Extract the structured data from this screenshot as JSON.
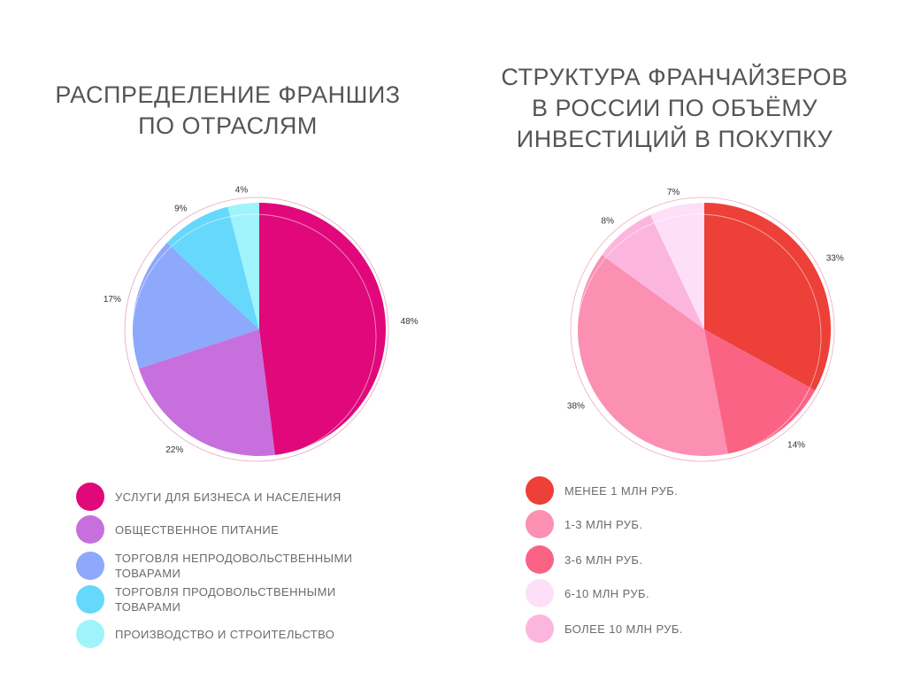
{
  "titles": {
    "left": "РАСПРЕДЕЛЕНИЕ ФРАНШИЗ\nПО ОТРАСЛЯМ",
    "right": "СТРУКТУРА ФРАНЧАЙЗЕРОВ\nВ РОССИИ ПО ОБЪЁМУ\nИНВЕСТИЦИЙ  В ПОКУПКУ"
  },
  "chart_data": [
    {
      "type": "pie",
      "title": "РАСПРЕДЕЛЕНИЕ ФРАНШИЗ ПО ОТРАСЛЯМ",
      "legend_position": "bottom",
      "slices": [
        {
          "label": "УСЛУГИ ДЛЯ БИЗНЕСА И НАСЕЛЕНИЯ",
          "value": 48,
          "value_label": "48%",
          "color": "#e0087a"
        },
        {
          "label": "ОБЩЕСТВЕННОЕ ПИТАНИЕ",
          "value": 22,
          "value_label": "22%",
          "color": "#c66fdd"
        },
        {
          "label": "ТОРГОВЛЯ НЕПРОДОВОЛЬСТВЕННЫМИ ТОВАРАМИ",
          "value": 17,
          "value_label": "17%",
          "color": "#8ea8fb"
        },
        {
          "label": "ТОРГОВЛЯ ПРОДОВОЛЬСТВЕННЫМИ ТОВАРАМИ",
          "value": 9,
          "value_label": "9%",
          "color": "#66d8fb"
        },
        {
          "label": "ПРОИЗВОДСТВО И СТРОИТЕЛЬСТВО",
          "value": 4,
          "value_label": "4%",
          "color": "#9ff4fb"
        }
      ]
    },
    {
      "type": "pie",
      "title": "СТРУКТУРА ФРАНЧАЙЗЕРОВ В РОССИИ ПО ОБЪЁМУ ИНВЕСТИЦИЙ  В ПОКУПКУ",
      "legend_position": "bottom",
      "slices": [
        {
          "label": "МЕНЕЕ 1 МЛН РУБ.",
          "value": 33,
          "value_label": "33%",
          "color": "#ec4038"
        },
        {
          "label": "3-6 МЛН РУБ.",
          "value": 14,
          "value_label": "14%",
          "color": "#fb6384"
        },
        {
          "label": "1-3 МЛН РУБ.",
          "value": 38,
          "value_label": "38%",
          "color": "#fb90b2"
        },
        {
          "label": "БОЛЕЕ 10 МЛН РУБ.",
          "value": 8,
          "value_label": "8%",
          "color": "#fcb6de"
        },
        {
          "label": "6-10 МЛН РУБ.",
          "value": 7,
          "value_label": "7%",
          "color": "#fde0f8"
        }
      ],
      "legend_order": [
        {
          "label": "МЕНЕЕ 1 МЛН РУБ.",
          "color": "#ec4038"
        },
        {
          "label": "1-3 МЛН РУБ.",
          "color": "#fb90b2"
        },
        {
          "label": "3-6 МЛН РУБ.",
          "color": "#fb6384"
        },
        {
          "label": "6-10 МЛН РУБ.",
          "color": "#fde0f8"
        },
        {
          "label": "БОЛЕЕ 10 МЛН РУБ.",
          "color": "#fcb6de"
        }
      ]
    }
  ]
}
